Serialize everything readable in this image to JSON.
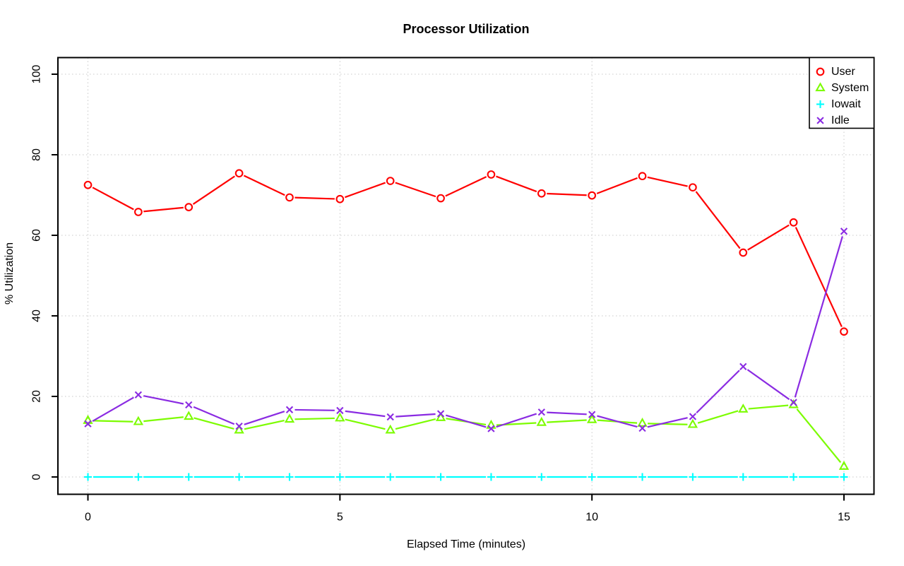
{
  "chart_data": {
    "type": "line",
    "title": "Processor Utilization",
    "xlabel": "Elapsed Time (minutes)",
    "ylabel": "% Utilization",
    "x": [
      0,
      1,
      2,
      3,
      4,
      5,
      6,
      7,
      8,
      9,
      10,
      11,
      12,
      13,
      14,
      15
    ],
    "xlim": [
      0,
      15
    ],
    "ylim": [
      0,
      100
    ],
    "xticks": [
      0,
      5,
      10,
      15
    ],
    "yticks": [
      0,
      20,
      40,
      60,
      80,
      100
    ],
    "grid": "dotted light-gray lines at every x and y tick",
    "legend_position": "top-right inside plot box",
    "series": [
      {
        "name": "User",
        "color": "#ff0000",
        "marker": "circle",
        "values": [
          72.5,
          65.8,
          67.0,
          75.4,
          69.4,
          69.0,
          73.5,
          69.2,
          75.1,
          70.4,
          69.9,
          74.7,
          71.9,
          55.7,
          63.2,
          36.1
        ]
      },
      {
        "name": "System",
        "color": "#7cfc00",
        "marker": "triangle",
        "values": [
          14.0,
          13.7,
          15.0,
          11.6,
          14.3,
          14.6,
          11.6,
          14.7,
          12.8,
          13.5,
          14.2,
          13.3,
          13.0,
          16.8,
          17.9,
          2.6
        ]
      },
      {
        "name": "Iowait",
        "color": "#00ffff",
        "marker": "plus",
        "values": [
          0,
          0,
          0,
          0,
          0,
          0,
          0,
          0,
          0,
          0,
          0,
          0,
          0,
          0,
          0,
          0
        ]
      },
      {
        "name": "Idle",
        "color": "#8a2be2",
        "marker": "x",
        "values": [
          13.2,
          20.4,
          17.9,
          12.6,
          16.7,
          16.5,
          14.9,
          15.7,
          12.0,
          16.1,
          15.5,
          12.1,
          15.0,
          27.4,
          18.5,
          61.0
        ]
      }
    ]
  },
  "colors": {
    "background": "#ffffff",
    "axis": "#000000",
    "grid": "#c8c8c8",
    "text": "#000000"
  }
}
